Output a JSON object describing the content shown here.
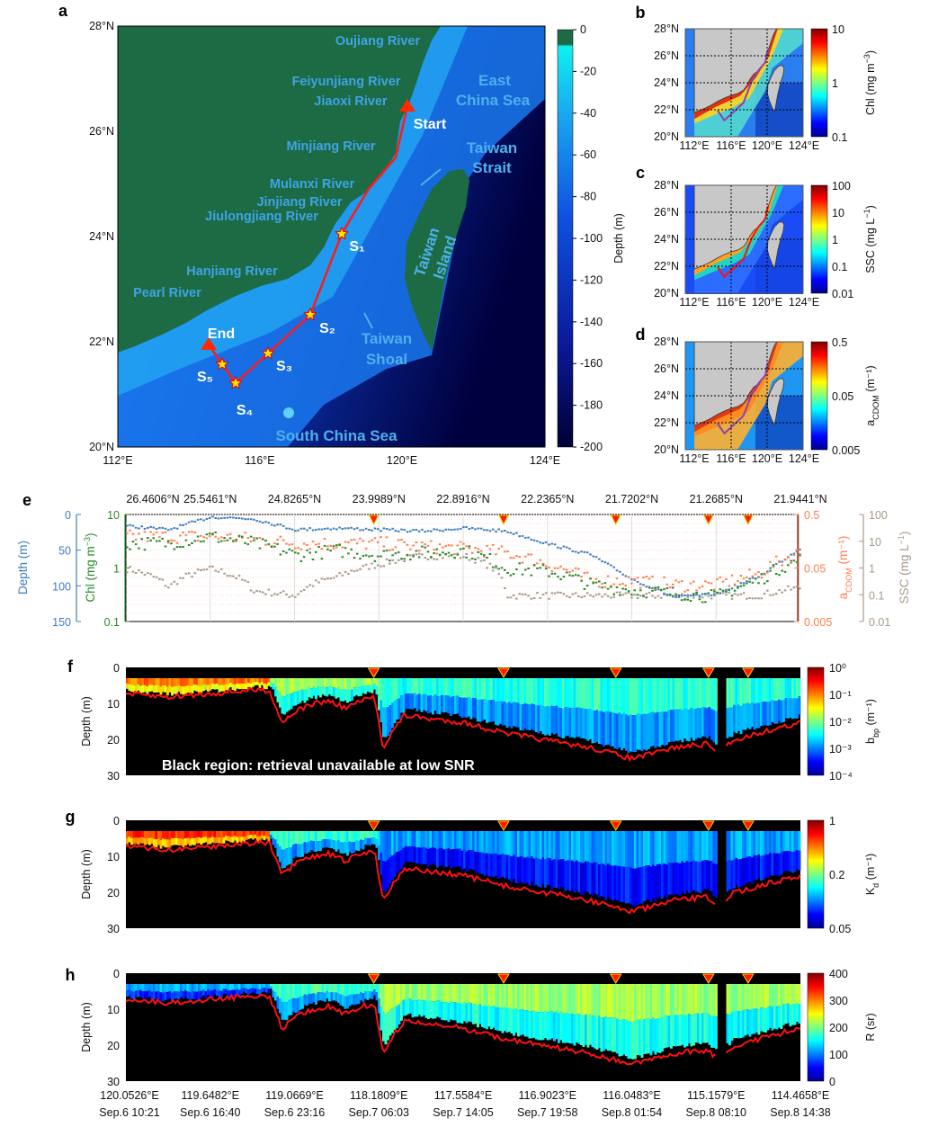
{
  "chart_data": [
    {
      "panel": "a",
      "type": "map",
      "lat_ticks": [
        "28°N",
        "26°N",
        "24°N",
        "22°N",
        "20°N"
      ],
      "lon_ticks": [
        "112°E",
        "116°E",
        "120°E",
        "124°E"
      ],
      "colorbar": {
        "title": "Depth (m)",
        "ticks": [
          "0",
          "-20",
          "-40",
          "-60",
          "-80",
          "-100",
          "-120",
          "-140",
          "-160",
          "-180",
          "-200"
        ],
        "range": [
          -200,
          0
        ]
      },
      "rivers": [
        "Oujiang River",
        "Feiyunjiang River",
        "Jiaoxi River",
        "Minjiang River",
        "Mulanxi River",
        "Jinjiang River",
        "Jiulongjiang River",
        "Hanjiang River",
        "Pearl River"
      ],
      "regions": [
        [
          "East",
          "China Sea"
        ],
        [
          "Taiwan",
          "Strait"
        ],
        [
          "Taiwan",
          "Island"
        ],
        [
          "Taiwan",
          "Shoal"
        ],
        [
          "South China Sea"
        ]
      ],
      "route_labels": [
        "Start",
        "End",
        "S₁",
        "S₂",
        "S₃",
        "S₄",
        "S₅"
      ],
      "colors": {
        "land": "#1c6b45",
        "route": "#ff1a1a",
        "marker": "#ff2a00",
        "star": "#ffe600"
      }
    },
    {
      "panel": "b",
      "type": "map",
      "lat_ticks": [
        "28°N",
        "26°N",
        "24°N",
        "22°N",
        "20°N"
      ],
      "lon_ticks": [
        "112°E",
        "116°E",
        "120°E",
        "124°E"
      ],
      "colorbar": {
        "title_main": "Chl (mg m",
        "title_sup": "−3",
        "title_end": ")",
        "ticks": [
          "10",
          "1",
          "0.1"
        ]
      }
    },
    {
      "panel": "c",
      "type": "map",
      "lat_ticks": [
        "28°N",
        "26°N",
        "24°N",
        "22°N",
        "20°N"
      ],
      "lon_ticks": [
        "112°E",
        "116°E",
        "120°E",
        "124°E"
      ],
      "colorbar": {
        "title_main": "SSC (mg L",
        "title_sup": "−1",
        "title_end": ")",
        "ticks": [
          "100",
          "10",
          "1",
          "0.1",
          "0.01"
        ]
      }
    },
    {
      "panel": "d",
      "type": "map",
      "lat_ticks": [
        "28°N",
        "26°N",
        "24°N",
        "22°N",
        "20°N"
      ],
      "lon_ticks": [
        "112°E",
        "116°E",
        "120°E",
        "124°E"
      ],
      "colorbar": {
        "title_main": "a",
        "title_sub": "CDOM",
        "title_end": " (m⁻¹)",
        "ticks": [
          "0.5",
          "0.05",
          "0.005"
        ]
      }
    },
    {
      "panel": "e",
      "type": "scatter",
      "top_ticks": [
        "26.4606°N",
        "25.5461°N",
        "24.8265°N",
        "23.9989°N",
        "22.8916°N",
        "22.2365°N",
        "21.7202°N",
        "21.2685°N",
        "21.9441°N"
      ],
      "x_ticks_index": [
        0,
        1,
        2,
        3,
        4,
        5,
        6,
        7,
        8
      ],
      "station_marks_index": [
        2.94,
        4.48,
        5.81,
        6.91,
        7.38
      ],
      "series": [
        {
          "name": "Depth",
          "label": "Depth (m)",
          "color": "#3d7ebf",
          "scale": "linear",
          "ylim": [
            0,
            150
          ],
          "ticks": [
            "0",
            "50",
            "100",
            "150"
          ],
          "x": [
            0,
            0.5,
            1,
            1.5,
            2,
            2.5,
            3,
            3.5,
            4,
            4.5,
            5,
            5.5,
            6,
            6.5,
            7,
            7.5,
            8
          ],
          "y": [
            15,
            20,
            2,
            5,
            20,
            18,
            20,
            22,
            18,
            22,
            40,
            55,
            90,
            115,
            110,
            85,
            45
          ]
        },
        {
          "name": "Chl",
          "label_main": "Chl (mg m",
          "label_sup": "−3",
          "label_end": ")",
          "color": "#2b8a2b",
          "scale": "log",
          "ylim": [
            0.1,
            10
          ],
          "ticks": [
            "10",
            "1",
            "0.1"
          ],
          "x": [
            0,
            0.5,
            1,
            1.5,
            2,
            2.5,
            3,
            3.5,
            4,
            4.5,
            5,
            5.5,
            6,
            6.5,
            7,
            7.5,
            8
          ],
          "y": [
            3,
            3,
            4,
            3,
            1.8,
            2.2,
            1.8,
            2,
            2.2,
            1.0,
            0.9,
            0.5,
            0.4,
            0.35,
            0.3,
            0.6,
            1.5
          ]
        },
        {
          "name": "aCDOM",
          "label_main": "a",
          "label_sub": "CDOM",
          "label_end": " (m⁻¹)",
          "color": "#ff7f50",
          "scale": "log",
          "ylim": [
            0.005,
            0.5
          ],
          "ticks": [
            "0.5",
            "0.05",
            "0.005"
          ],
          "x": [
            0,
            0.5,
            1,
            1.5,
            2,
            2.5,
            3,
            3.5,
            4,
            4.5,
            5,
            5.5,
            6,
            6.5,
            7,
            7.5,
            8
          ],
          "y": [
            0.2,
            0.2,
            0.2,
            0.18,
            0.15,
            0.15,
            0.15,
            0.13,
            0.12,
            0.1,
            0.06,
            0.03,
            0.03,
            0.025,
            0.025,
            0.04,
            0.1
          ]
        },
        {
          "name": "SSC",
          "label_main": "SSC (mg L",
          "label_sup": "−1",
          "label_end": ")",
          "color": "#a89a8a",
          "scale": "log",
          "ylim": [
            0.01,
            100
          ],
          "ticks": [
            "100",
            "10",
            "1",
            "0.1",
            "0.01"
          ],
          "x": [
            0,
            0.5,
            1,
            1.5,
            2,
            2.5,
            3,
            3.5,
            4,
            4.5,
            5,
            5.5,
            6,
            6.5,
            7,
            7.5,
            8
          ],
          "y": [
            1,
            0.2,
            1,
            0.15,
            0.1,
            0.5,
            1.5,
            3,
            3,
            0.1,
            0.1,
            0.1,
            0.1,
            0.1,
            0.1,
            0.1,
            0.2
          ]
        }
      ]
    },
    {
      "panel": "f",
      "type": "heatmap",
      "ylabel": "Depth (m)",
      "y_ticks": [
        "0",
        "10",
        "20",
        "30"
      ],
      "ylim": [
        0,
        30
      ],
      "colorbar": {
        "title_main": "b",
        "title_sub": "bp",
        "title_end": " (m⁻¹)",
        "ticks": [
          "10⁰",
          "10⁻¹",
          "10⁻²",
          "10⁻³",
          "10⁻⁴"
        ]
      },
      "annotation": "Black region: retrieval unavailable at low SNR",
      "level_segments": [
        {
          "from": 0,
          "to": 1.7,
          "level": 0.68
        },
        {
          "from": 1.7,
          "to": 3,
          "level": 0.45
        },
        {
          "from": 3,
          "to": 8,
          "level": 0.33
        }
      ]
    },
    {
      "panel": "g",
      "type": "heatmap",
      "ylabel": "Depth (m)",
      "y_ticks": [
        "0",
        "10",
        "20",
        "30"
      ],
      "ylim": [
        0,
        30
      ],
      "colorbar": {
        "title_main": "K",
        "title_sub": "d",
        "title_end": " (m⁻¹)",
        "ticks": [
          "1",
          "0.2",
          "0.05"
        ]
      },
      "level_segments": [
        {
          "from": 0,
          "to": 1.7,
          "level": 0.75
        },
        {
          "from": 1.7,
          "to": 3,
          "level": 0.33
        },
        {
          "from": 3,
          "to": 8,
          "level": 0.2
        }
      ]
    },
    {
      "panel": "h",
      "type": "heatmap",
      "ylabel": "Depth (m)",
      "y_ticks": [
        "0",
        "10",
        "20",
        "30"
      ],
      "ylim": [
        0,
        30
      ],
      "colorbar": {
        "title": "R (sr)",
        "ticks": [
          "400",
          "300",
          "200",
          "100",
          "0"
        ]
      },
      "level_segments": [
        {
          "from": 0,
          "to": 1.7,
          "level": 0.22
        },
        {
          "from": 1.7,
          "to": 3,
          "level": 0.35
        },
        {
          "from": 3,
          "to": 8,
          "level": 0.45
        }
      ],
      "lon_ticks": [
        "120.0526°E",
        "119.6482°E",
        "119.0669°E",
        "118.1809°E",
        "117.5584°E",
        "116.9023°E",
        "116.0483°E",
        "115.1579°E",
        "114.4658°E"
      ],
      "time_ticks": [
        "Sep.6 10:21",
        "Sep.6 16:40",
        "Sep.6 23:16",
        "Sep.7 06:03",
        "Sep.7 14:05",
        "Sep.7 19:58",
        "Sep.8 01:54",
        "Sep.8 08:10",
        "Sep.8 14:38"
      ],
      "bottom_depth_profile": {
        "x": [
          0,
          0.5,
          1,
          1.5,
          1.7,
          1.85,
          2,
          2.2,
          2.4,
          2.6,
          2.8,
          2.95,
          3.05,
          3.15,
          3.3,
          3.6,
          4,
          4.5,
          5,
          5.5,
          6,
          6.2,
          6.5,
          6.9,
          7.0,
          7.1,
          7.2,
          7.5,
          8
        ],
        "y": [
          7,
          8,
          7,
          6,
          6,
          15,
          12,
          10,
          9,
          11,
          9,
          8,
          22,
          18,
          13,
          14,
          15,
          18,
          20,
          22,
          25,
          24,
          22,
          21,
          23,
          22,
          20,
          18,
          15
        ]
      },
      "data_gap_index": [
        6.99,
        7.1
      ]
    }
  ],
  "panel_labels": [
    "a",
    "b",
    "c",
    "d",
    "e",
    "f",
    "g",
    "h"
  ]
}
